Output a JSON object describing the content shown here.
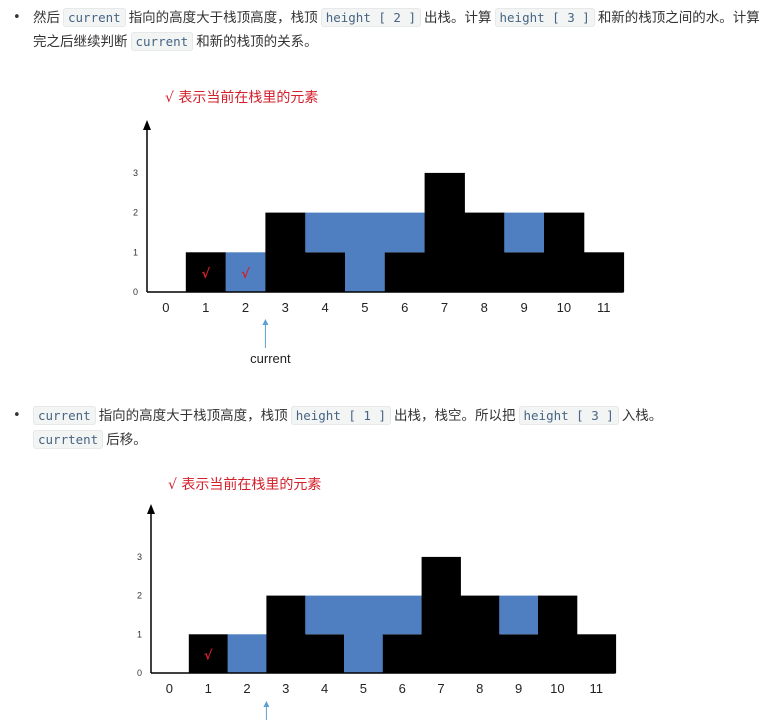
{
  "paragraph1": {
    "t1": "然后",
    "c1": "current",
    "t2": "指向的高度大于栈顶高度，栈顶",
    "c2": "height [ 2 ]",
    "t3": "出栈。计算",
    "c3": "height [ 3 ]",
    "t4": "和新的栈顶之间的水。计算完之后继续判断",
    "c4": "current",
    "t5": "和新的栈顶的关系。"
  },
  "paragraph2": {
    "c1": "current",
    "t1": "指向的高度大于栈顶高度，栈顶",
    "c2": "height [ 1 ]",
    "t2": "出栈，栈空。所以把",
    "c3": "height [ 3 ]",
    "t3": "入栈。",
    "c4": "currtent",
    "t4": "后移。"
  },
  "figure1": {
    "legend": "√ 表示当前在栈里的元素",
    "pointer_label": "current",
    "pointer_index": 3,
    "stack_marks": [
      1,
      2
    ],
    "mark_symbol": "√"
  },
  "figure2": {
    "legend": "√ 表示当前在栈里的元素",
    "pointer_index": 3,
    "stack_marks": [
      1
    ],
    "mark_symbol": "√"
  },
  "colors": {
    "wall": "#000000",
    "water": "#4f7fc0",
    "mark": "#d3202b",
    "pointer": "#5aa0d0"
  },
  "chart_data": [
    {
      "type": "bar",
      "categories": [
        "0",
        "1",
        "2",
        "3",
        "4",
        "5",
        "6",
        "7",
        "8",
        "9",
        "10",
        "11"
      ],
      "series": [
        {
          "values": [
            0,
            1,
            0,
            2,
            1,
            0,
            1,
            3,
            2,
            1,
            2,
            1
          ]
        },
        {
          "values": [
            0,
            0,
            1,
            0,
            1,
            2,
            1,
            0,
            0,
            1,
            0,
            0
          ]
        }
      ],
      "yticks": [
        "0",
        "1",
        "2",
        "3"
      ],
      "ylim": [
        0,
        3
      ]
    },
    {
      "type": "bar",
      "categories": [
        "0",
        "1",
        "2",
        "3",
        "4",
        "5",
        "6",
        "7",
        "8",
        "9",
        "10",
        "11"
      ],
      "series": [
        {
          "values": [
            0,
            1,
            0,
            2,
            1,
            0,
            1,
            3,
            2,
            1,
            2,
            1
          ]
        },
        {
          "values": [
            0,
            0,
            1,
            0,
            1,
            2,
            1,
            0,
            0,
            1,
            0,
            0
          ]
        }
      ],
      "yticks": [
        "0",
        "1",
        "2",
        "3"
      ],
      "ylim": [
        0,
        3
      ]
    }
  ]
}
